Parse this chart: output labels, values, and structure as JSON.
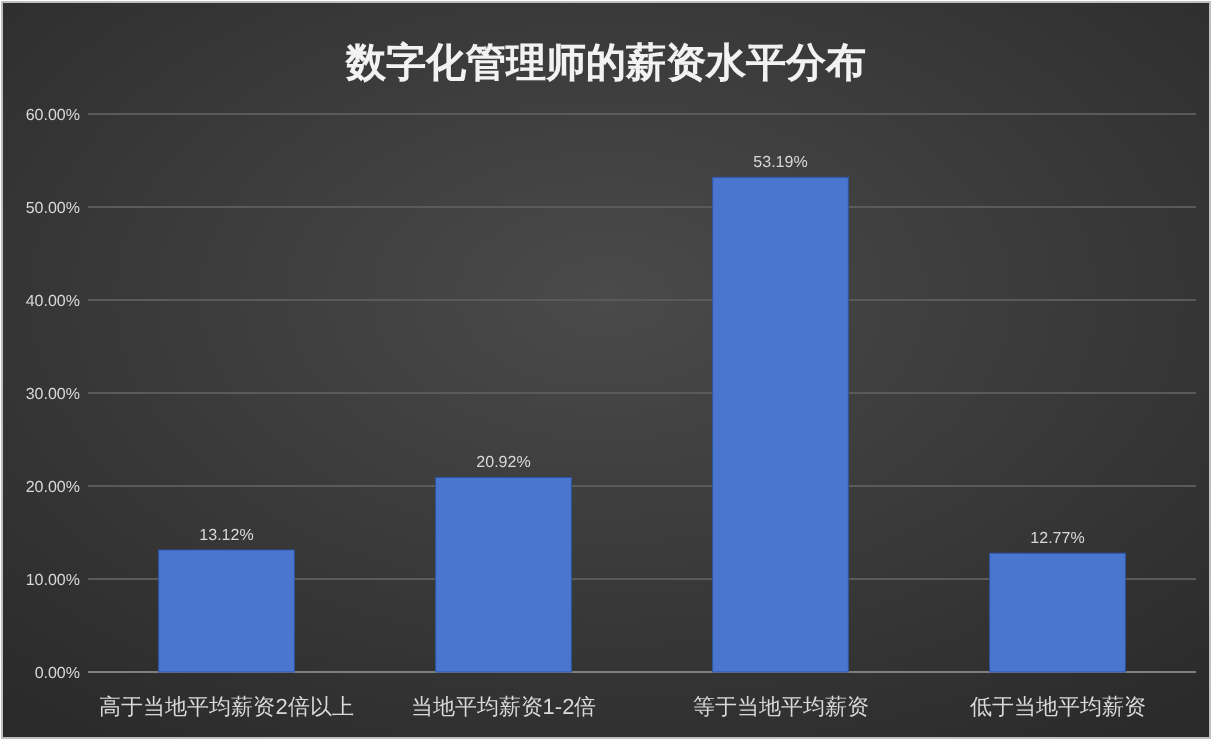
{
  "chart_data": {
    "type": "bar",
    "title": "数字化管理师的薪资水平分布",
    "categories": [
      "高于当地平均薪资2倍以上",
      "当地平均薪资1-2倍",
      "等于当地平均薪资",
      "低于当地平均薪资"
    ],
    "values": [
      13.12,
      20.92,
      53.19,
      12.77
    ],
    "color": "#4a76d0",
    "value_labels": [
      "13.12%",
      "20.92%",
      "53.19%",
      "12.77%"
    ],
    "ylim": [
      0,
      60
    ],
    "yticks": [
      {
        "value": 0,
        "label": "0.00%"
      },
      {
        "value": 10,
        "label": "10.00%"
      },
      {
        "value": 20,
        "label": "20.00%"
      },
      {
        "value": 30,
        "label": "30.00%"
      },
      {
        "value": 40,
        "label": "40.00%"
      },
      {
        "value": 50,
        "label": "50.00%"
      },
      {
        "value": 60,
        "label": "60.00%"
      }
    ],
    "grid": "y"
  }
}
